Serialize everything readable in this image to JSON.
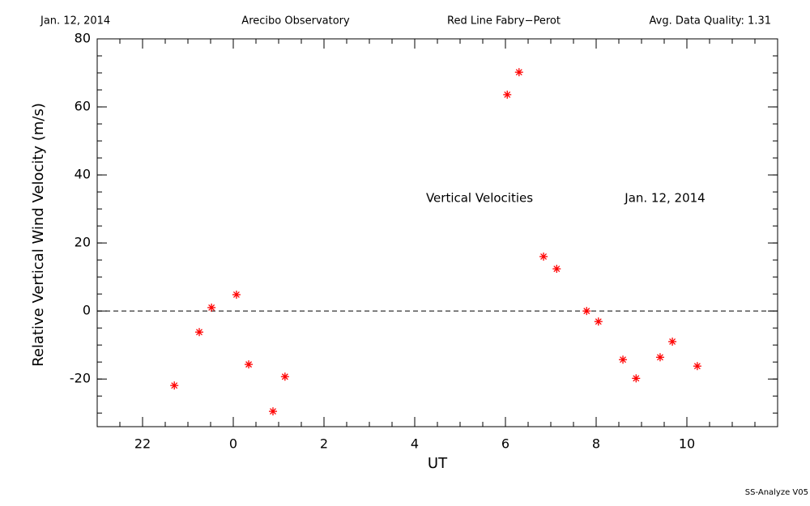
{
  "chart_data": {
    "type": "scatter",
    "header": [
      "Jan. 12, 2014",
      "Arecibo Observatory",
      "Red Line Fabry−Perot",
      "Avg. Data Quality: 1.31"
    ],
    "x_label": "UT",
    "y_label": "Relative Vertical Wind Velocity (m/s)",
    "annotations": [
      "Vertical Velocities",
      "Jan. 12, 2014"
    ],
    "footer": "SS-Analyze V05",
    "xlim": [
      -3,
      12
    ],
    "xticks": [
      {
        "value": -2,
        "label": "22"
      },
      0,
      2,
      4,
      6,
      8,
      10
    ],
    "ylim": [
      -34,
      80
    ],
    "yticks": [
      -20,
      0,
      20,
      40,
      60,
      80
    ],
    "zero_line": 0,
    "color": "#ff0000",
    "x": [
      -1.3,
      -0.75,
      -0.48,
      0.07,
      0.34,
      0.875,
      1.14,
      6.04,
      6.3,
      6.84,
      7.13,
      7.79,
      8.05,
      8.59,
      8.88,
      9.41,
      9.68,
      10.23
    ],
    "values": [
      -21.9,
      -6.2,
      1.0,
      4.8,
      -15.7,
      -29.5,
      -19.3,
      63.6,
      70.2,
      16.0,
      12.4,
      0,
      -3.1,
      -14.3,
      -19.8,
      -13.6,
      -9.0,
      -16.2
    ]
  }
}
